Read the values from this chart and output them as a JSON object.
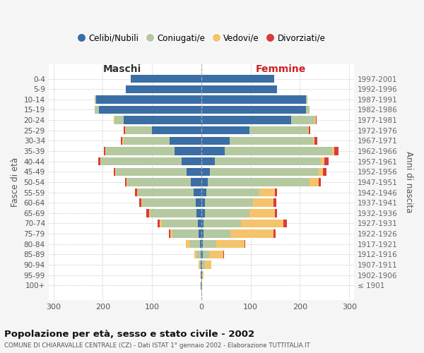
{
  "age_groups": [
    "100+",
    "95-99",
    "90-94",
    "85-89",
    "80-84",
    "75-79",
    "70-74",
    "65-69",
    "60-64",
    "55-59",
    "50-54",
    "45-49",
    "40-44",
    "35-39",
    "30-34",
    "25-29",
    "20-24",
    "15-19",
    "10-14",
    "5-9",
    "0-4"
  ],
  "birth_years": [
    "≤ 1901",
    "1902-1906",
    "1907-1911",
    "1912-1916",
    "1917-1921",
    "1922-1926",
    "1927-1931",
    "1932-1936",
    "1937-1941",
    "1942-1946",
    "1947-1951",
    "1952-1956",
    "1957-1961",
    "1962-1966",
    "1967-1971",
    "1972-1976",
    "1977-1981",
    "1982-1986",
    "1987-1991",
    "1992-1996",
    "1997-2001"
  ],
  "colors": {
    "celibe": "#3b6ea5",
    "coniugato": "#b5c9a0",
    "vedovo": "#f5c36b",
    "divorziato": "#d93b3b"
  },
  "maschi": {
    "celibe": [
      1,
      1,
      1,
      2,
      3,
      5,
      7,
      10,
      12,
      16,
      22,
      30,
      40,
      55,
      65,
      100,
      158,
      208,
      213,
      153,
      143
    ],
    "coniugato": [
      0,
      0,
      2,
      8,
      20,
      53,
      73,
      93,
      108,
      113,
      128,
      143,
      163,
      138,
      93,
      53,
      18,
      8,
      3,
      0,
      0
    ],
    "vedovo": [
      0,
      0,
      2,
      4,
      9,
      5,
      4,
      3,
      2,
      2,
      2,
      2,
      2,
      2,
      2,
      2,
      2,
      0,
      0,
      0,
      0
    ],
    "divorziato": [
      0,
      0,
      0,
      0,
      0,
      3,
      5,
      5,
      4,
      4,
      3,
      3,
      4,
      3,
      3,
      3,
      0,
      0,
      0,
      0,
      0
    ]
  },
  "femmine": {
    "celibe": [
      0,
      1,
      2,
      3,
      3,
      4,
      5,
      7,
      8,
      10,
      13,
      18,
      28,
      48,
      58,
      98,
      182,
      212,
      212,
      153,
      148
    ],
    "coniugato": [
      0,
      1,
      5,
      13,
      27,
      55,
      75,
      90,
      97,
      107,
      207,
      220,
      215,
      218,
      168,
      118,
      48,
      8,
      3,
      0,
      0
    ],
    "vedovo": [
      1,
      2,
      13,
      28,
      57,
      87,
      87,
      52,
      42,
      32,
      18,
      8,
      7,
      4,
      4,
      2,
      2,
      0,
      0,
      0,
      0
    ],
    "divorziato": [
      0,
      0,
      0,
      2,
      2,
      5,
      7,
      5,
      5,
      4,
      5,
      8,
      8,
      8,
      5,
      3,
      2,
      0,
      0,
      0,
      0
    ]
  },
  "xlim": 310,
  "title": "Popolazione per età, sesso e stato civile - 2002",
  "subtitle": "COMUNE DI CHIARAVALLE CENTRALE (CZ) - Dati ISTAT 1° gennaio 2002 - Elaborazione TUTTITALIA.IT",
  "ylabel_left": "Fasce di età",
  "ylabel_right": "Anni di nascita",
  "xlabel_left": "Maschi",
  "xlabel_right": "Femmine",
  "bg_color": "#f5f5f5",
  "plot_bg_color": "#ffffff",
  "grid_color": "#cccccc",
  "legend_labels": [
    "Celibi/Nubili",
    "Coniugati/e",
    "Vedovi/e",
    "Divorziati/e"
  ]
}
